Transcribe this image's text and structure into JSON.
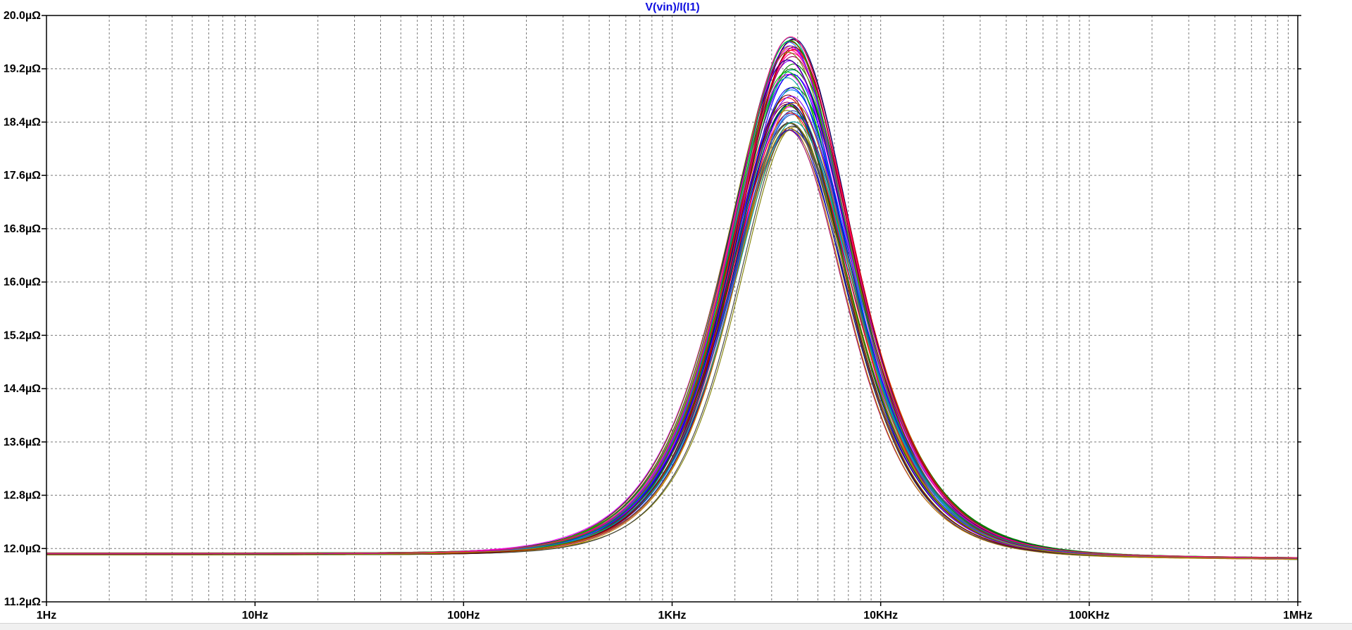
{
  "chart_data": {
    "type": "line",
    "title": "V(vin)/I(I1)",
    "title_color": "#1010e0",
    "x_scale": "log",
    "xlim": [
      1,
      1000000
    ],
    "ylim": [
      11.2,
      20.0
    ],
    "x_ticks": [
      {
        "value": 1,
        "label": "1Hz"
      },
      {
        "value": 10,
        "label": "10Hz"
      },
      {
        "value": 100,
        "label": "100Hz"
      },
      {
        "value": 1000,
        "label": "1KHz"
      },
      {
        "value": 10000,
        "label": "10KHz"
      },
      {
        "value": 100000,
        "label": "100KHz"
      },
      {
        "value": 1000000,
        "label": "1MHz"
      }
    ],
    "y_ticks": [
      {
        "value": 20.0,
        "label": "20.0µΩ"
      },
      {
        "value": 19.2,
        "label": "19.2µΩ"
      },
      {
        "value": 18.4,
        "label": "18.4µΩ"
      },
      {
        "value": 17.6,
        "label": "17.6µΩ"
      },
      {
        "value": 16.8,
        "label": "16.8µΩ"
      },
      {
        "value": 16.0,
        "label": "16.0µΩ"
      },
      {
        "value": 15.2,
        "label": "15.2µΩ"
      },
      {
        "value": 14.4,
        "label": "14.4µΩ"
      },
      {
        "value": 13.6,
        "label": "13.6µΩ"
      },
      {
        "value": 12.8,
        "label": "12.8µΩ"
      },
      {
        "value": 12.0,
        "label": "12.0µΩ"
      },
      {
        "value": 11.2,
        "label": "11.2µΩ"
      }
    ],
    "grid": true,
    "series_count": 60,
    "series_description": "Monte Carlo family of resonance curves: baseline ~11.92 at low frequency, peak near 3.7 kHz between ~18.3 and ~19.7, slight decline to ~11.85 at 1 MHz",
    "baseline_low": 11.92,
    "baseline_high": 11.85,
    "peak_frequency": 3700,
    "peak_min": 18.28,
    "peak_max": 19.68,
    "colors": [
      "#0000ff",
      "#ff0000",
      "#008000",
      "#ff00ff",
      "#00a0a0",
      "#000080",
      "#800000",
      "#808000",
      "#8000ff",
      "#c08000",
      "#00c000",
      "#ff0080",
      "#0080ff",
      "#404040",
      "#a00060",
      "#2040c0"
    ]
  }
}
